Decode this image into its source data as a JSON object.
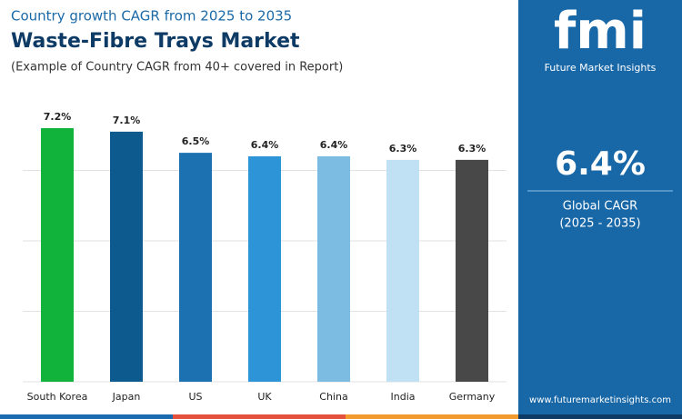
{
  "chart_data": {
    "type": "bar",
    "kicker": "Country growth CAGR from 2025 to 2035",
    "title": "Waste-Fibre Trays Market",
    "subtitle": "(Example of Country CAGR from 40+ covered in Report)",
    "categories": [
      "South Korea",
      "Japan",
      "US",
      "UK",
      "China",
      "India",
      "Germany"
    ],
    "values": [
      7.2,
      7.1,
      6.5,
      6.4,
      6.4,
      6.3,
      6.3
    ],
    "value_labels": [
      "7.2%",
      "7.1%",
      "6.5%",
      "6.4%",
      "6.4%",
      "6.3%",
      "6.3%"
    ],
    "colors": [
      "#12b33b",
      "#0d5a8e",
      "#1c72b0",
      "#2e94d8",
      "#7cbbe2",
      "#c0e0f3",
      "#484848"
    ],
    "ylim": [
      0,
      8
    ],
    "yticks": [
      2,
      4,
      6
    ],
    "grid": true
  },
  "panel": {
    "logo": "fmi",
    "brand": "Future Market Insights",
    "value": "6.4%",
    "label": "Global CAGR",
    "period": "(2025 - 2035)",
    "website": "www.futuremarketinsights.com"
  }
}
